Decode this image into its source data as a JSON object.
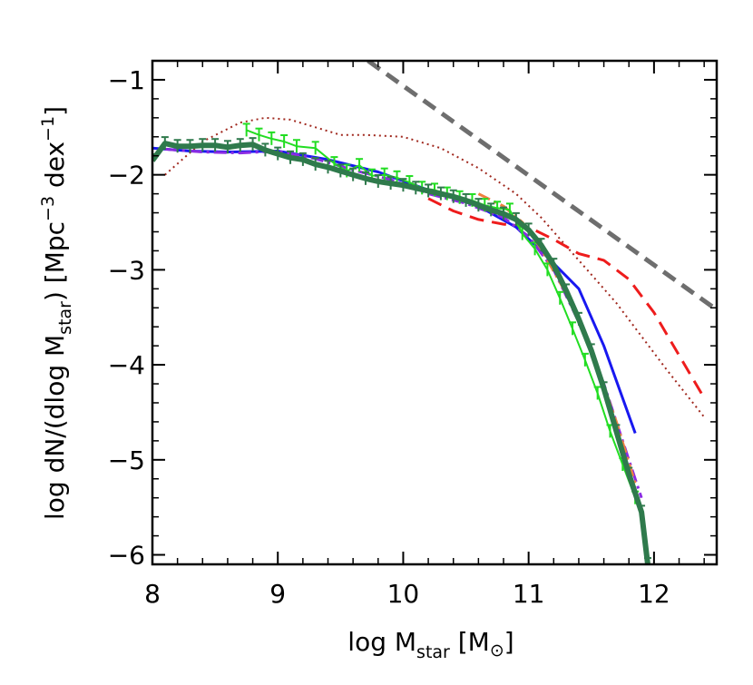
{
  "chart_data": {
    "type": "line",
    "xlim": [
      8.0,
      12.5
    ],
    "ylim": [
      -6.1,
      -0.8
    ],
    "x_ticks": [
      "8",
      "9",
      "10",
      "11",
      "12"
    ],
    "y_ticks": [
      "−1",
      "−2",
      "−3",
      "−4",
      "−5",
      "−6"
    ],
    "x_tick_values": [
      8,
      9,
      10,
      11,
      12
    ],
    "y_tick_values": [
      -1,
      -2,
      -3,
      -4,
      -5,
      -6
    ],
    "xlabel": {
      "prefix": "log M",
      "sub": "star",
      "open": " [M",
      "sun": "⊙",
      "close": "]"
    },
    "ylabel": {
      "prefix": "log dN/(dlog M",
      "sub": "star",
      "mid": ")  [Mpc",
      "sup1": "−3",
      "mid2": " dex",
      "sup2": "−1",
      "close": "]"
    },
    "grid": false,
    "legend": "none",
    "series": [
      {
        "style": "dashed",
        "color": "#6e6e6e",
        "width": 5,
        "x": [
          9.72,
          12.5
        ],
        "y": [
          -0.8,
          -3.42
        ]
      },
      {
        "style": "dotted",
        "color": "#a0281e",
        "width": 2,
        "x": [
          8.1,
          8.4,
          8.7,
          8.9,
          9.1,
          9.3,
          9.5,
          9.7,
          10.0,
          10.3,
          10.6,
          10.9,
          11.1,
          11.3,
          11.5,
          11.7,
          11.9,
          12.1,
          12.4
        ],
        "y": [
          -2.0,
          -1.65,
          -1.45,
          -1.4,
          -1.42,
          -1.5,
          -1.58,
          -1.58,
          -1.6,
          -1.72,
          -1.93,
          -2.2,
          -2.45,
          -2.75,
          -3.05,
          -3.35,
          -3.7,
          -4.05,
          -4.55
        ]
      },
      {
        "style": "dashed",
        "color": "#ee1c1c",
        "width": 3,
        "x": [
          10.2,
          10.4,
          10.6,
          10.8,
          11.0,
          11.2,
          11.4,
          11.6,
          11.8,
          12.0,
          12.2,
          12.4
        ],
        "y": [
          -2.25,
          -2.38,
          -2.47,
          -2.52,
          -2.55,
          -2.68,
          -2.83,
          -2.9,
          -3.1,
          -3.45,
          -3.9,
          -4.35
        ]
      },
      {
        "style": "solid",
        "color": "#1818f0",
        "width": 3,
        "x": [
          8.0,
          8.3,
          8.6,
          9.0,
          9.4,
          9.8,
          10.2,
          10.6,
          10.9,
          11.1,
          11.4,
          11.6,
          11.85
        ],
        "y": [
          -1.72,
          -1.75,
          -1.76,
          -1.75,
          -1.84,
          -1.97,
          -2.16,
          -2.33,
          -2.55,
          -2.8,
          -3.2,
          -3.8,
          -4.72
        ]
      },
      {
        "style": "dashdot",
        "color": "#8a2be2",
        "width": 3,
        "x": [
          8.1,
          8.4,
          8.7,
          9.0,
          9.3,
          9.6,
          9.9,
          10.2,
          10.5,
          10.8,
          11.0,
          11.2,
          11.4,
          11.6,
          11.8,
          11.9
        ],
        "y": [
          -1.73,
          -1.76,
          -1.77,
          -1.75,
          -1.83,
          -1.95,
          -2.05,
          -2.2,
          -2.3,
          -2.45,
          -2.65,
          -3.0,
          -3.55,
          -4.2,
          -5.0,
          -5.4
        ]
      },
      {
        "style": "dashdot",
        "color": "#f08040",
        "width": 3,
        "x": [
          10.6,
          10.8,
          10.95,
          11.1,
          11.3,
          11.5,
          11.7,
          11.85
        ],
        "y": [
          -2.2,
          -2.33,
          -2.5,
          -2.78,
          -3.25,
          -3.85,
          -4.6,
          -5.25
        ]
      },
      {
        "style": "solid",
        "color": "#22dd22",
        "width": 2,
        "markers": true,
        "x": [
          8.75,
          8.85,
          8.95,
          9.05,
          9.15,
          9.3,
          9.45,
          9.55,
          9.65,
          9.75,
          9.85,
          9.95,
          10.05,
          10.15,
          10.25,
          10.35,
          10.45,
          10.55,
          10.65,
          10.75,
          10.85,
          10.95,
          11.05,
          11.15,
          11.25,
          11.35,
          11.45,
          11.55,
          11.65,
          11.75,
          11.85
        ],
        "y": [
          -1.53,
          -1.58,
          -1.62,
          -1.65,
          -1.7,
          -1.72,
          -1.88,
          -1.96,
          -1.9,
          -2.01,
          -2.0,
          -2.03,
          -2.08,
          -2.14,
          -2.16,
          -2.2,
          -2.24,
          -2.27,
          -2.32,
          -2.35,
          -2.37,
          -2.62,
          -2.78,
          -3.0,
          -3.3,
          -3.62,
          -3.95,
          -4.3,
          -4.7,
          -5.05,
          -5.4
        ]
      },
      {
        "style": "solid",
        "color": "#2f7a4c",
        "width": 6,
        "markers": true,
        "x": [
          8.0,
          8.1,
          8.2,
          8.3,
          8.4,
          8.5,
          8.6,
          8.7,
          8.8,
          8.9,
          9.0,
          9.1,
          9.2,
          9.3,
          9.4,
          9.5,
          9.6,
          9.7,
          9.8,
          9.9,
          10.0,
          10.1,
          10.2,
          10.3,
          10.4,
          10.5,
          10.6,
          10.7,
          10.8,
          10.9,
          11.0,
          11.1,
          11.2,
          11.3,
          11.4,
          11.5,
          11.6,
          11.7,
          11.8,
          11.9,
          11.95
        ],
        "y": [
          -1.85,
          -1.67,
          -1.7,
          -1.7,
          -1.69,
          -1.69,
          -1.71,
          -1.69,
          -1.68,
          -1.74,
          -1.78,
          -1.82,
          -1.84,
          -1.89,
          -1.92,
          -1.96,
          -2.0,
          -2.04,
          -2.07,
          -2.09,
          -2.11,
          -2.14,
          -2.17,
          -2.2,
          -2.23,
          -2.27,
          -2.32,
          -2.37,
          -2.41,
          -2.47,
          -2.58,
          -2.74,
          -2.95,
          -3.22,
          -3.52,
          -3.85,
          -4.25,
          -4.7,
          -5.15,
          -5.55,
          -6.1
        ]
      }
    ]
  }
}
